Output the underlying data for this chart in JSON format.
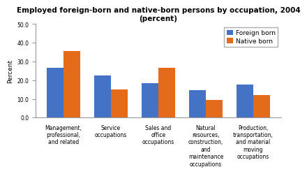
{
  "title": "Employed foreign-born and native-born persons by occupation, 2004\n(percent)",
  "categories": [
    "Management,\nprofessional,\nand related",
    "Service\noccupations",
    "Sales and\noffice\noccupations",
    "Natural\nresources,\nconstruction,\nand\nmaintenance\noccupations",
    "Production,\ntransportation,\nand material\nmoving\noccupations"
  ],
  "foreign_born": [
    26.5,
    22.5,
    18.5,
    14.5,
    17.5
  ],
  "native_born": [
    35.5,
    15.0,
    26.5,
    9.5,
    12.0
  ],
  "foreign_color": "#4472C4",
  "native_color": "#E36B1A",
  "ylabel": "Percent",
  "ylim": [
    0,
    50.0
  ],
  "yticks": [
    0.0,
    10.0,
    20.0,
    30.0,
    40.0,
    50.0
  ],
  "legend_labels": [
    "Foreign born",
    "Native born"
  ],
  "bar_width": 0.35,
  "title_fontsize": 7.5,
  "axis_label_fontsize": 6.5,
  "tick_fontsize": 5.5,
  "legend_fontsize": 6.5,
  "bg_color": "#FFFFFF",
  "plot_bg_color": "#FFFFFF",
  "border_color": "#AAAAAA"
}
